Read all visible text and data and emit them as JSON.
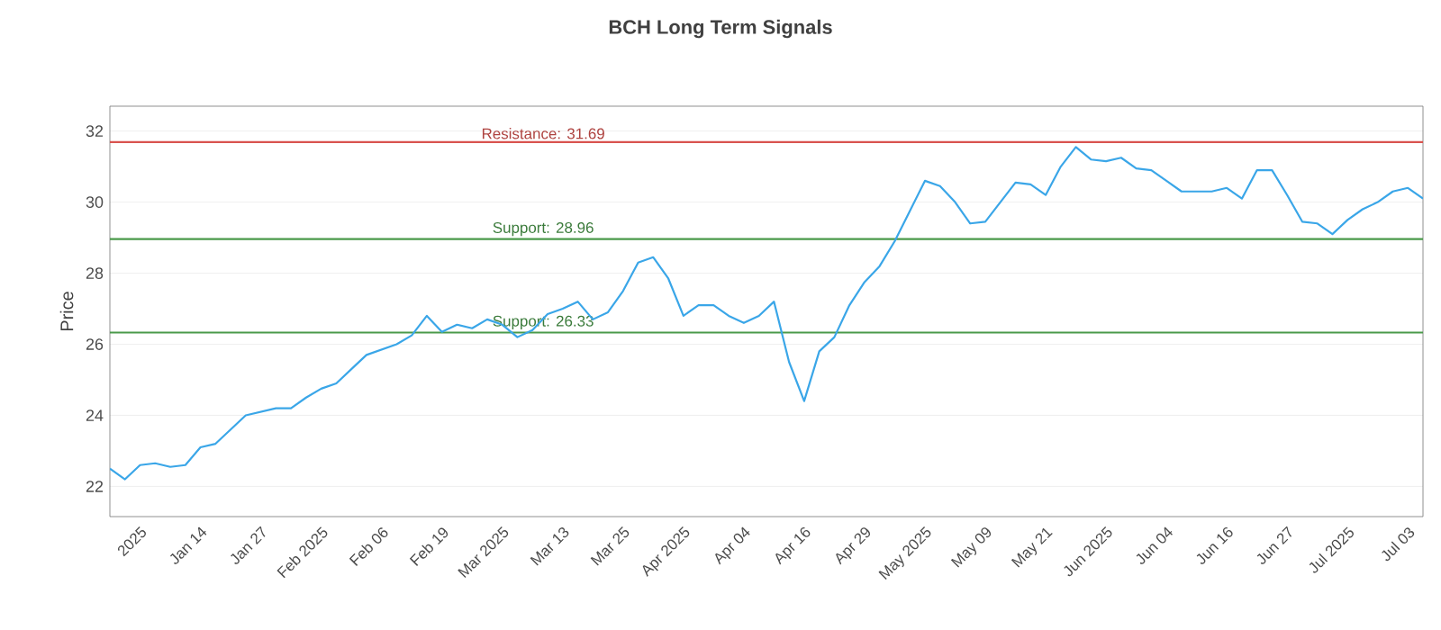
{
  "chart_data": {
    "type": "line",
    "title": "BCH Long Term Signals",
    "ylabel": "Price",
    "categories": [
      null,
      null,
      "2025",
      null,
      null,
      null,
      "Jan 14",
      null,
      null,
      null,
      "Jan 27",
      null,
      null,
      null,
      "Feb 2025",
      null,
      null,
      null,
      "Feb 06",
      null,
      null,
      null,
      "Feb 19",
      null,
      null,
      null,
      "Mar 2025",
      null,
      null,
      null,
      "Mar 13",
      null,
      null,
      null,
      "Mar 25",
      null,
      null,
      null,
      "Apr 2025",
      null,
      null,
      null,
      "Apr 04",
      null,
      null,
      null,
      "Apr 16",
      null,
      null,
      null,
      "Apr 29",
      null,
      null,
      null,
      "May 2025",
      null,
      null,
      null,
      "May 09",
      null,
      null,
      null,
      "May 21",
      null,
      null,
      null,
      "Jun 2025",
      null,
      null,
      null,
      "Jun 04",
      null,
      null,
      null,
      "Jun 16",
      null,
      null,
      null,
      "Jun 27",
      null,
      null,
      null,
      "Jul 2025",
      null,
      null,
      null,
      "Jul 03",
      null
    ],
    "series": [
      {
        "color": "#3aa6e8",
        "values": [
          22.5,
          22.2,
          22.6,
          22.65,
          22.55,
          22.6,
          23.1,
          23.2,
          23.6,
          24.0,
          24.1,
          24.2,
          24.2,
          24.5,
          24.75,
          24.9,
          25.3,
          25.7,
          25.85,
          26.0,
          26.25,
          26.8,
          26.35,
          26.55,
          26.45,
          26.7,
          26.55,
          26.2,
          26.4,
          26.85,
          27.0,
          27.2,
          26.7,
          26.9,
          27.5,
          28.3,
          28.45,
          27.85,
          26.8,
          27.1,
          27.1,
          26.8,
          26.6,
          26.8,
          27.2,
          25.5,
          24.4,
          25.8,
          26.2,
          27.1,
          27.75,
          28.2,
          28.9,
          29.75,
          30.6,
          30.45,
          30.0,
          29.4,
          29.45,
          30.0,
          30.55,
          30.5,
          30.2,
          31.0,
          31.55,
          31.2,
          31.15,
          31.25,
          30.95,
          30.9,
          30.6,
          30.3,
          30.3,
          30.3,
          30.4,
          30.1,
          30.9,
          30.9,
          30.2,
          29.45,
          29.4,
          29.1,
          29.5,
          29.8,
          30.0,
          30.3,
          30.4,
          30.1
        ]
      }
    ],
    "ylim": [
      21.15,
      32.7
    ],
    "yticks": [
      22,
      24,
      26,
      28,
      30,
      32
    ],
    "grid": "y",
    "marker": "none",
    "ref_lines": [
      {
        "axis": "y",
        "value": 31.69,
        "label": "Resistance: 31.69",
        "color": "#d9534f"
      },
      {
        "axis": "y",
        "value": 28.96,
        "label": "Support: 28.96",
        "color": "#4a9a4a"
      },
      {
        "axis": "y",
        "value": 26.33,
        "label": "Support: 26.33",
        "color": "#4a9a4a"
      }
    ]
  }
}
